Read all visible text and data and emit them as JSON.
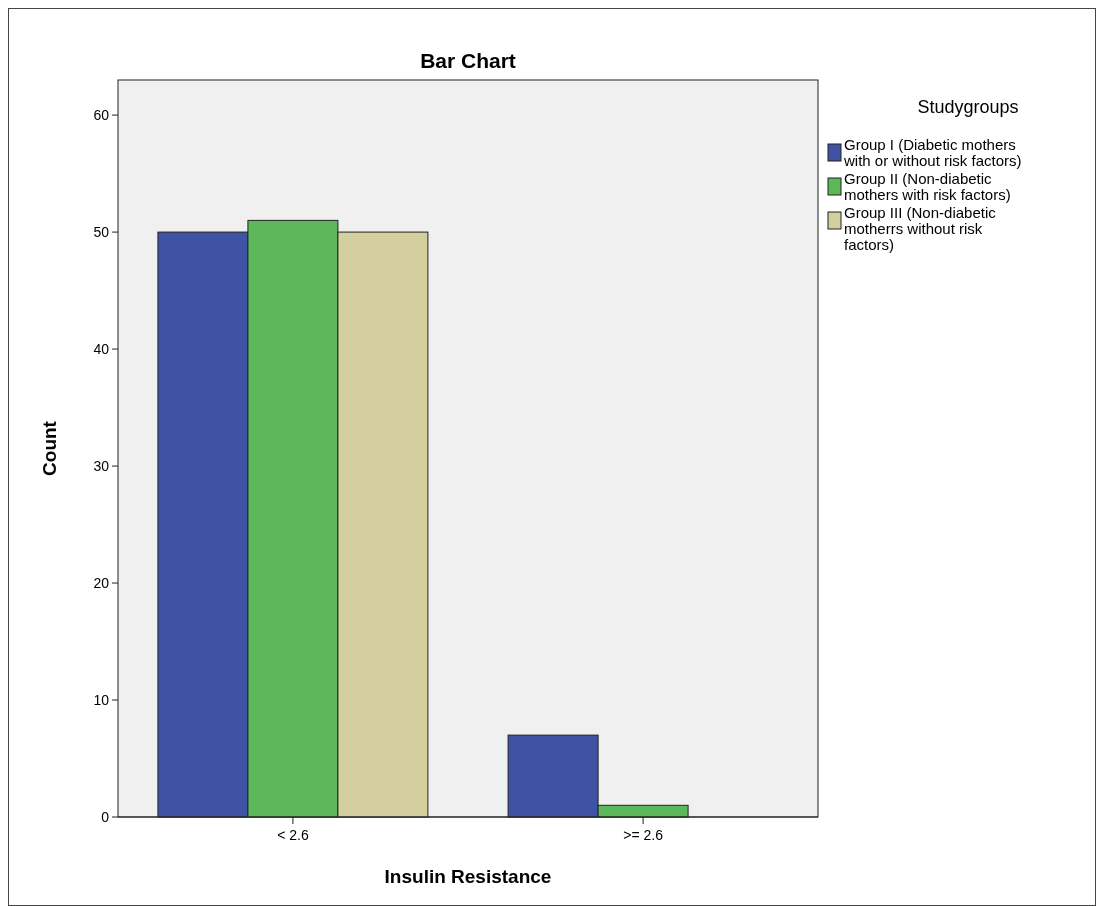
{
  "chart_data": {
    "type": "bar",
    "title": "Bar Chart",
    "xlabel": "Insulin Resistance",
    "ylabel": "Count",
    "legend_title": "Studygroups",
    "categories": [
      "< 2.6",
      ">= 2.6"
    ],
    "series": [
      {
        "name": "Group I (Diabetic mothers with or without risk factors)",
        "color": "#3e53a4",
        "values": [
          50,
          7
        ]
      },
      {
        "name": "Group II (Non-diabetic mothers with risk factors)",
        "color": "#5cb85a",
        "values": [
          51,
          1
        ]
      },
      {
        "name": "Group III (Non-diabetic motherrs without risk factors)",
        "color": "#d3cf9f",
        "values": [
          50,
          0
        ]
      }
    ],
    "ylim": [
      0,
      63
    ],
    "yticks": [
      0,
      10,
      20,
      30,
      40,
      50,
      60
    ],
    "grid": false,
    "legend": "right"
  }
}
